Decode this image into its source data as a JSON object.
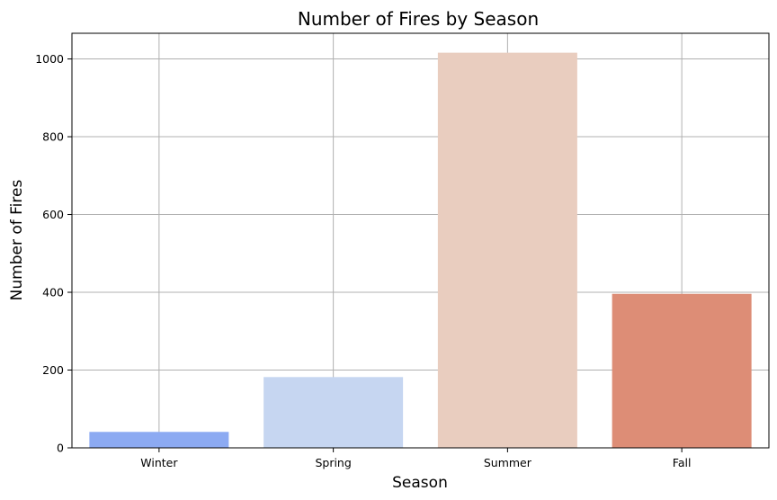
{
  "chart_data": {
    "type": "bar",
    "title": "Number of Fires by Season",
    "xlabel": "Season",
    "ylabel": "Number of Fires",
    "categories": [
      "Winter",
      "Spring",
      "Summer",
      "Fall"
    ],
    "values": [
      41,
      182,
      1016,
      396
    ],
    "ylim": [
      0,
      1066
    ],
    "yticks": [
      0,
      200,
      400,
      600,
      800,
      1000
    ],
    "grid": true,
    "colors": [
      "#8caaf2",
      "#c6d6f1",
      "#e9cdbf",
      "#dd8d76"
    ]
  }
}
